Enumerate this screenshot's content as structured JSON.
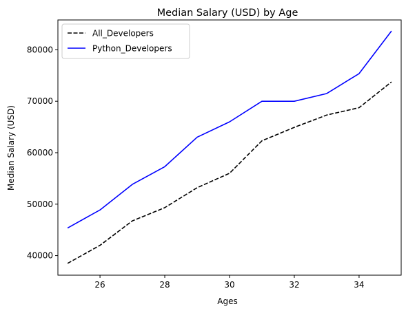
{
  "chart_data": {
    "type": "line",
    "title": "Median Salary (USD) by Age",
    "xlabel": "Ages",
    "ylabel": "Median Salary (USD)",
    "x": [
      25,
      26,
      27,
      28,
      29,
      30,
      31,
      32,
      33,
      34,
      35
    ],
    "xlim": [
      24.7,
      35.3
    ],
    "ylim": [
      36200,
      85800
    ],
    "xticks": [
      26,
      28,
      30,
      32,
      34
    ],
    "yticks": [
      40000,
      50000,
      60000,
      70000,
      80000
    ],
    "grid": false,
    "legend_position": "upper-left",
    "series": [
      {
        "name": "All_Developers",
        "color": "#000000",
        "line_style": "dashed",
        "values": [
          38496,
          42000,
          46752,
          49320,
          53200,
          56000,
          62316,
          64928,
          67317,
          68748,
          73752
        ]
      },
      {
        "name": "Python_Developers",
        "color": "#0000ff",
        "line_style": "solid",
        "values": [
          45372,
          48876,
          53850,
          57287,
          63016,
          65998,
          70003,
          70000,
          71496,
          75370,
          83640
        ]
      }
    ]
  }
}
